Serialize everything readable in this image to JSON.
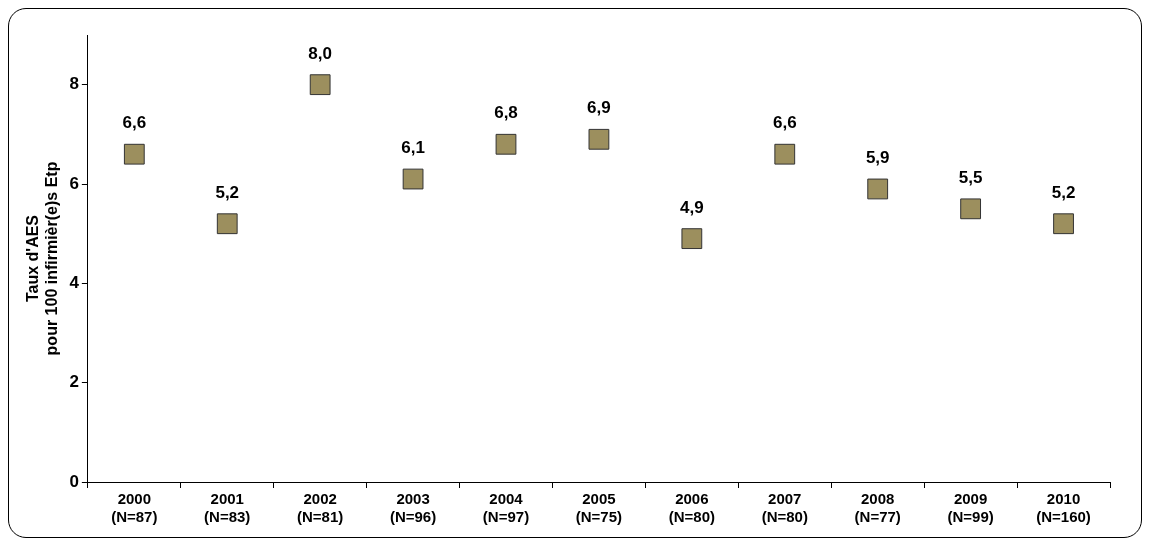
{
  "chart_data": {
    "type": "scatter",
    "ylabel": "Taux d'AES\npour 100 infirmièr(e)s Etp",
    "categories": [
      "2000\n(N=87)",
      "2001\n(N=83)",
      "2002\n(N=81)",
      "2003\n(N=96)",
      "2004\n(N=97)",
      "2005\n(N=75)",
      "2006\n(N=80)",
      "2007\n(N=80)",
      "2008\n(N=77)",
      "2009\n(N=99)",
      "2010\n(N=160)"
    ],
    "series": [
      {
        "color": "#9c8f5e",
        "values": [
          6.6,
          5.2,
          8.0,
          6.1,
          6.8,
          6.9,
          4.9,
          6.6,
          5.9,
          5.5,
          5.2
        ],
        "value_labels": [
          "6,6",
          "5,2",
          "8,0",
          "6,1",
          "6,8",
          "6,9",
          "4,9",
          "6,6",
          "5,9",
          "5,5",
          "5,2"
        ]
      }
    ],
    "ylim": [
      0,
      9
    ],
    "yticks": [
      0,
      2,
      4,
      6,
      8
    ],
    "grid": false,
    "legend": false,
    "marker": "square"
  }
}
